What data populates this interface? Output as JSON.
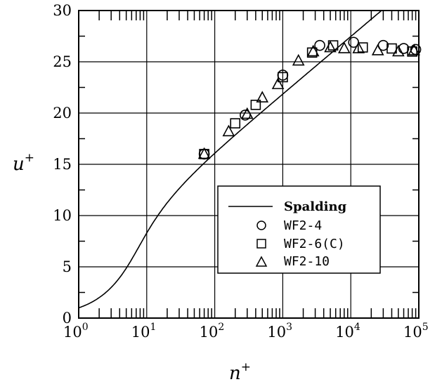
{
  "chart_data": {
    "type": "scatter",
    "xscale": "log",
    "xlim": [
      1,
      100000
    ],
    "ylim": [
      0,
      30
    ],
    "xlabel": "n",
    "xlabel_sup": "+",
    "ylabel": "u",
    "ylabel_sup": "+",
    "x_ticks": [
      {
        "base": "10",
        "exp": "0"
      },
      {
        "base": "10",
        "exp": "1"
      },
      {
        "base": "10",
        "exp": "2"
      },
      {
        "base": "10",
        "exp": "3"
      },
      {
        "base": "10",
        "exp": "4"
      },
      {
        "base": "10",
        "exp": "5"
      }
    ],
    "y_ticks": [
      "0",
      "5",
      "10",
      "15",
      "20",
      "25",
      "30"
    ],
    "grid": true,
    "legend_position": "lower-right",
    "series": [
      {
        "name": "Spalding",
        "kind": "line"
      },
      {
        "name": "WF2-4",
        "kind": "marker",
        "marker": "circle",
        "points": [
          [
            70,
            16.0
          ],
          [
            280,
            19.8
          ],
          [
            1000,
            23.7
          ],
          [
            3500,
            26.6
          ],
          [
            11000,
            26.9
          ],
          [
            30000,
            26.6
          ],
          [
            60000,
            26.3
          ],
          [
            90000,
            26.2
          ]
        ]
      },
      {
        "name": "WF2-6(C)",
        "kind": "marker",
        "marker": "square",
        "points": [
          [
            70,
            16.0
          ],
          [
            200,
            19.0
          ],
          [
            400,
            20.8
          ],
          [
            1000,
            23.5
          ],
          [
            2700,
            25.9
          ],
          [
            5500,
            26.6
          ],
          [
            15000,
            26.4
          ],
          [
            40000,
            26.3
          ],
          [
            80000,
            26.0
          ]
        ]
      },
      {
        "name": "WF2-10",
        "kind": "marker",
        "marker": "triangle",
        "points": [
          [
            70,
            16.0
          ],
          [
            160,
            18.2
          ],
          [
            300,
            19.9
          ],
          [
            500,
            21.5
          ],
          [
            850,
            22.8
          ],
          [
            1700,
            25.1
          ],
          [
            2800,
            26.0
          ],
          [
            5000,
            26.4
          ],
          [
            8000,
            26.3
          ],
          [
            13000,
            26.3
          ],
          [
            25000,
            26.1
          ],
          [
            50000,
            26.0
          ],
          [
            85000,
            26.1
          ]
        ]
      }
    ]
  }
}
